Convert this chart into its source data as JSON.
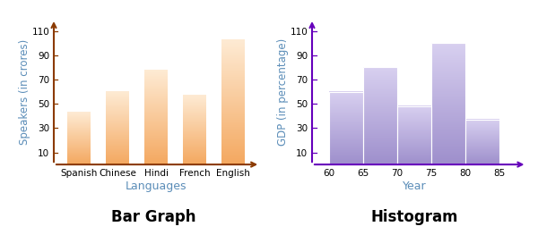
{
  "bar_categories": [
    "Spanish",
    "Chinese",
    "Hindi",
    "French",
    "English"
  ],
  "bar_values": [
    43,
    60,
    78,
    57,
    103
  ],
  "bar_color_top": "#FEEBD4",
  "bar_color_bottom": "#F4A860",
  "bar_axis_color": "#8B3A00",
  "bar_xlabel": "Languages",
  "bar_ylabel": "Speakers (in crores)",
  "bar_title": "Bar Graph",
  "bar_yticks": [
    10,
    30,
    50,
    70,
    90,
    110
  ],
  "bar_ylim": [
    0,
    120
  ],
  "hist_bin_edges": [
    60,
    65,
    70,
    75,
    80,
    85
  ],
  "hist_values": [
    60,
    80,
    48,
    100,
    37
  ],
  "hist_color_top": "#D8D0F0",
  "hist_color_bottom": "#9E8FCC",
  "hist_axis_color": "#6600BB",
  "hist_xlabel": "Year",
  "hist_ylabel": "GDP (in percentage)",
  "hist_title": "Histogram",
  "hist_yticks": [
    10,
    30,
    50,
    70,
    90,
    110
  ],
  "hist_ylim": [
    0,
    120
  ],
  "hist_xticks": [
    60,
    65,
    70,
    75,
    80,
    85
  ],
  "label_color": "#5B8DB8",
  "title_color": "#000000",
  "title_fontsize": 12,
  "axis_label_fontsize": 8.5,
  "tick_fontsize": 7.5
}
